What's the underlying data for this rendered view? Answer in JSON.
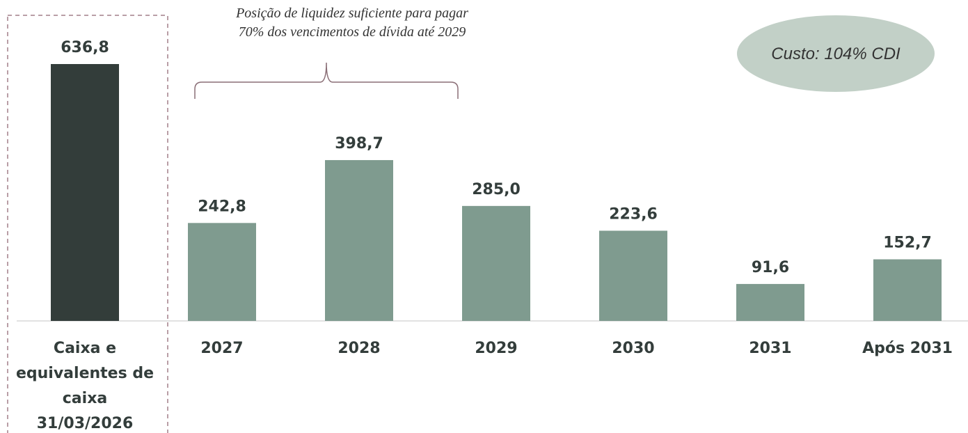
{
  "chart_data": {
    "type": "bar",
    "categories": [
      "Caixa e equivalentes de caixa 31/03/2026",
      "2027",
      "2028",
      "2029",
      "2030",
      "2031",
      "Após 2031"
    ],
    "category_lines": [
      [
        "Caixa e",
        "equivalentes de",
        "caixa",
        "31/03/2026"
      ],
      [
        "2027"
      ],
      [
        "2028"
      ],
      [
        "2029"
      ],
      [
        "2030"
      ],
      [
        "2031"
      ],
      [
        "Após 2031"
      ]
    ],
    "values": [
      636.8,
      242.8,
      398.7,
      285.0,
      223.6,
      91.6,
      152.7
    ],
    "value_labels": [
      "636,8",
      "242,8",
      "398,7",
      "285,0",
      "223,6",
      "91,6",
      "152,7"
    ],
    "ylim": [
      0,
      700
    ],
    "title": "",
    "xlabel": "",
    "ylabel": "",
    "grid": false,
    "colors": {
      "cash_bar": "#333d3a",
      "debt_bar": "#7f9b8f",
      "text": "#333d3b",
      "highlight_border": "#a27e88",
      "brace": "#8a6e76",
      "cost_ellipse": "#c2d0c7",
      "axis": "#d9d9d9"
    }
  },
  "annotations": {
    "brace_note_line1": "Posição de liquidez suficiente para pagar",
    "brace_note_line2": "70% dos vencimentos de dívida até 2029",
    "cost_label": "Custo: 104% CDI"
  }
}
